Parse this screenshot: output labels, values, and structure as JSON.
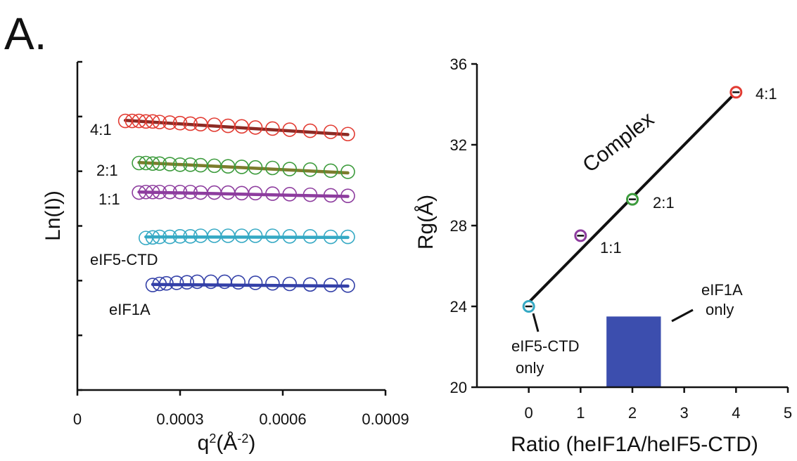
{
  "panel_label": "A.",
  "colors": {
    "axis": "#111111",
    "red": "#e23b32",
    "green": "#3c9b3c",
    "purple": "#8d3c9e",
    "cyan": "#35a9c4",
    "blue": "#3340a8",
    "olive": "#7b7c2c",
    "darkred": "#8c2a24",
    "block": "#3c4eae"
  },
  "chart_data": [
    {
      "type": "scatter",
      "title": "",
      "xlabel": "q",
      "xlabel_sup": "2",
      "xlabel_rest": "(Å",
      "xlabel_sup2": "-2",
      "xlabel_end": ")",
      "ylabel": "Ln(I))",
      "xlim": [
        0,
        0.0009
      ],
      "xticks": [
        "0",
        "0.0003",
        "0.0006",
        "0.0009"
      ],
      "xtick_values": [
        0,
        0.0003,
        0.0006,
        0.0009
      ],
      "ylim": [
        0,
        6
      ],
      "yticks_count": 7,
      "y_tick_labels_shown": false,
      "grid": false,
      "series": [
        {
          "name": "4:1",
          "color": "red",
          "fit_color": "darkred",
          "x": [
            0.00014,
            0.00016,
            0.00018,
            0.0002,
            0.00022,
            0.00024,
            0.00027,
            0.0003,
            0.00033,
            0.00036,
            0.0004,
            0.00044,
            0.00048,
            0.00052,
            0.00057,
            0.00062,
            0.00068,
            0.00074,
            0.00079
          ],
          "y": [
            4.92,
            4.92,
            4.92,
            4.91,
            4.91,
            4.9,
            4.89,
            4.88,
            4.87,
            4.86,
            4.85,
            4.83,
            4.82,
            4.8,
            4.78,
            4.76,
            4.74,
            4.72,
            4.68
          ],
          "fit": [
            [
              0.00014,
              4.93
            ],
            [
              0.00079,
              4.67
            ]
          ]
        },
        {
          "name": "2:1",
          "color": "green",
          "fit_color": "olive",
          "x": [
            0.00018,
            0.0002,
            0.00022,
            0.00024,
            0.00027,
            0.0003,
            0.00033,
            0.00036,
            0.0004,
            0.00044,
            0.00048,
            0.00052,
            0.00057,
            0.00062,
            0.00068,
            0.00074,
            0.00079
          ],
          "y": [
            4.15,
            4.15,
            4.14,
            4.14,
            4.13,
            4.12,
            4.12,
            4.11,
            4.1,
            4.09,
            4.08,
            4.07,
            4.06,
            4.04,
            4.03,
            4.01,
            3.99
          ],
          "fit": [
            [
              0.00018,
              4.16
            ],
            [
              0.00079,
              3.97
            ]
          ]
        },
        {
          "name": "1:1",
          "color": "purple",
          "fit_color": "purple",
          "x": [
            0.00018,
            0.0002,
            0.00022,
            0.00024,
            0.00027,
            0.0003,
            0.00033,
            0.00036,
            0.0004,
            0.00044,
            0.00048,
            0.00052,
            0.00057,
            0.00062,
            0.00068,
            0.00074,
            0.00079
          ],
          "y": [
            3.61,
            3.62,
            3.62,
            3.62,
            3.62,
            3.62,
            3.62,
            3.61,
            3.61,
            3.61,
            3.6,
            3.6,
            3.59,
            3.58,
            3.57,
            3.56,
            3.55
          ],
          "fit": [
            [
              0.00018,
              3.62
            ],
            [
              0.00079,
              3.54
            ]
          ]
        },
        {
          "name": "eIF5-CTD",
          "color": "cyan",
          "fit_color": "cyan",
          "x": [
            0.0002,
            0.00022,
            0.00024,
            0.00027,
            0.0003,
            0.00033,
            0.00036,
            0.0004,
            0.00044,
            0.00048,
            0.00052,
            0.00057,
            0.00062,
            0.00068,
            0.00074,
            0.00079
          ],
          "y": [
            2.78,
            2.79,
            2.8,
            2.8,
            2.81,
            2.81,
            2.82,
            2.82,
            2.82,
            2.82,
            2.82,
            2.82,
            2.81,
            2.81,
            2.8,
            2.8
          ],
          "fit": [
            [
              0.0002,
              2.8
            ],
            [
              0.00079,
              2.79
            ]
          ]
        },
        {
          "name": "eIF1A",
          "color": "blue",
          "fit_color": "blue",
          "x": [
            0.00022,
            0.00024,
            0.00026,
            0.00029,
            0.00032,
            0.00035,
            0.00039,
            0.00043,
            0.00047,
            0.00052,
            0.00057,
            0.00062,
            0.00068,
            0.00074,
            0.00079
          ],
          "y": [
            1.92,
            1.94,
            1.95,
            1.96,
            1.97,
            1.98,
            1.98,
            1.98,
            1.97,
            1.96,
            1.95,
            1.94,
            1.93,
            1.92,
            1.91
          ],
          "fit": [
            [
              0.00022,
              1.93
            ],
            [
              0.00079,
              1.9
            ]
          ]
        }
      ]
    },
    {
      "type": "scatter",
      "title": "",
      "xlabel": "Ratio (heIF1A/heIF5-CTD)",
      "ylabel_prefix": "Rg(",
      "ylabel_suffix": ")",
      "ylabel_angstrom": "Å",
      "xlim": [
        -1,
        5
      ],
      "ylim": [
        20,
        36
      ],
      "xticks": [
        "0",
        "1",
        "2",
        "3",
        "4",
        "5"
      ],
      "xtick_values": [
        0,
        1,
        2,
        3,
        4,
        5
      ],
      "yticks": [
        "20",
        "24",
        "28",
        "32",
        "36"
      ],
      "ytick_values": [
        20,
        24,
        28,
        32,
        36
      ],
      "grid": false,
      "points": [
        {
          "x": 0,
          "y": 24.0,
          "label": "eIF5-CTD",
          "label2": "only",
          "color": "cyan"
        },
        {
          "x": 1,
          "y": 27.5,
          "label": "1:1",
          "color": "purple"
        },
        {
          "x": 2,
          "y": 29.3,
          "label": "2:1",
          "color": "green"
        },
        {
          "x": 4,
          "y": 34.6,
          "label": "4:1",
          "color": "red"
        }
      ],
      "fit_line": [
        [
          0,
          24.2
        ],
        [
          4,
          34.6
        ]
      ],
      "fit_label": "Complex",
      "eif1a_only_box": {
        "x0": 1.5,
        "x1": 2.55,
        "y0": 20,
        "y1": 23.5
      },
      "eif1a_only_label": "eIF1A",
      "eif1a_only_label2": "only"
    }
  ]
}
